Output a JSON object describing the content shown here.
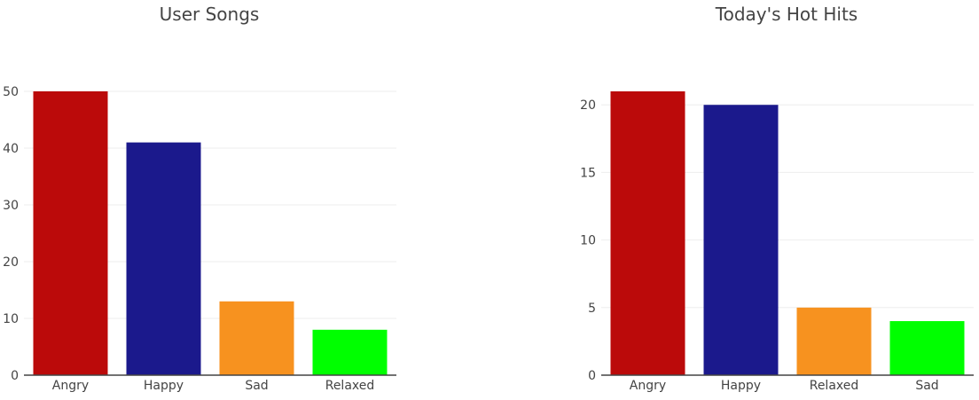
{
  "chart_data": [
    {
      "type": "bar",
      "title": "User Songs",
      "categories": [
        "Angry",
        "Happy",
        "Sad",
        "Relaxed"
      ],
      "values": [
        50,
        41,
        13,
        8
      ],
      "colors": [
        "#bb0a0a",
        "#1b198c",
        "#f7921f",
        "#00ff00"
      ],
      "ylim": [
        0,
        50
      ],
      "yticks": [
        0,
        10,
        20,
        30,
        40,
        50
      ],
      "grid": true,
      "xlabel": "",
      "ylabel": ""
    },
    {
      "type": "bar",
      "title": "Today's Hot Hits",
      "categories": [
        "Angry",
        "Happy",
        "Relaxed",
        "Sad"
      ],
      "values": [
        21,
        20,
        5,
        4
      ],
      "colors": [
        "#bb0a0a",
        "#1b198c",
        "#f7921f",
        "#00ff00"
      ],
      "ylim": [
        0,
        21
      ],
      "yticks": [
        0,
        5,
        10,
        15,
        20
      ],
      "grid": true,
      "xlabel": "",
      "ylabel": ""
    }
  ]
}
